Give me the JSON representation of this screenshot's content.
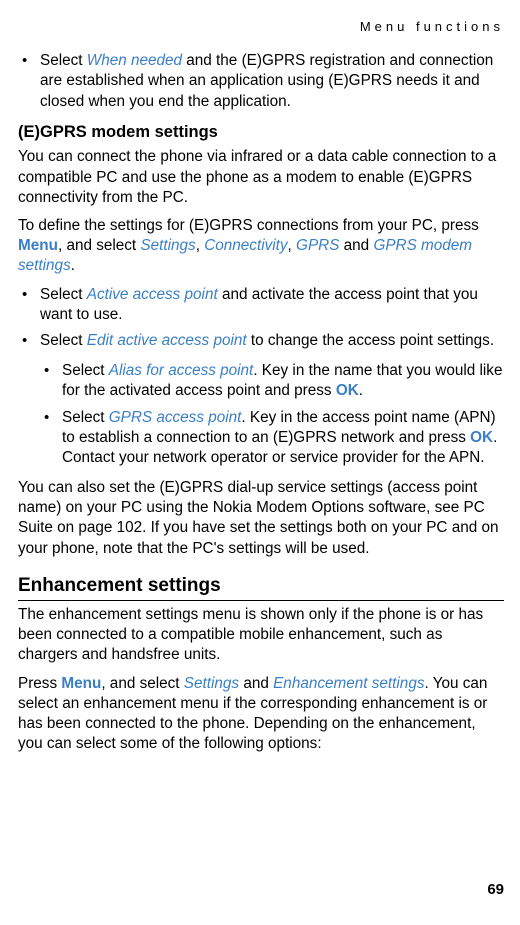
{
  "header": "Menu functions",
  "bullet1_pre": "Select",
  "bullet1_link": "When needed",
  "bullet1_post": " and the (E)GPRS registration and connection are established when an application using (E)GPRS needs it and closed when you end the application.",
  "modem_title": "(E)GPRS modem settings",
  "modem_intro": "You can connect the phone via infrared or a data cable connection to a compatible PC and use the phone as a modem to enable (E)GPRS connectivity from the PC.",
  "modem_define_pre": "To define the settings for (E)GPRS connections from your PC, press ",
  "menu_label": "Menu",
  "select_word": ", and select ",
  "settings_link": "Settings",
  "connectivity_link": "Connectivity",
  "gprs_link": "GPRS",
  "and_word": " and ",
  "gprs_modem_settings_link": "GPRS modem settings",
  "period": ".",
  "comma": ", ",
  "active_ap_pre": "Select",
  "active_ap_link": "Active access point",
  "active_ap_post": " and activate the access point that you want to use.",
  "edit_ap_pre": "Select",
  "edit_ap_link": "Edit active access point",
  "edit_ap_post": " to change the access point settings.",
  "alias_pre": "Select",
  "alias_link": "Alias for access point",
  "alias_mid": ". Key in the name that you would like for the activated access point and press ",
  "ok_label": "OK",
  "gprs_ap_pre": "Select",
  "gprs_ap_link": "GPRS access point",
  "gprs_ap_mid": ". Key in the access point name (APN) to establish a connection to an (E)GPRS network and press ",
  "gprs_ap_post": ". Contact your network operator or service provider for the APN.",
  "dialup_paragraph": "You can also set the (E)GPRS dial-up service settings (access point name) on your PC using the Nokia Modem Options software, see PC Suite on page 102. If you have set the settings both on your PC and on your phone, note that the PC's settings will be used.",
  "enhancement_title": "Enhancement settings",
  "enhancement_intro": "The enhancement settings menu is shown only if the phone is or has been connected to a compatible mobile enhancement, such as chargers and handsfree units.",
  "enhancement_press_pre": "Press ",
  "enhancement_settings_link": "Enhancement settings",
  "enhancement_post": ". You can select an enhancement menu if the corresponding enhancement is or has been connected to the phone. Depending on the enhancement, you can select some of the following options:",
  "page_number": "69"
}
